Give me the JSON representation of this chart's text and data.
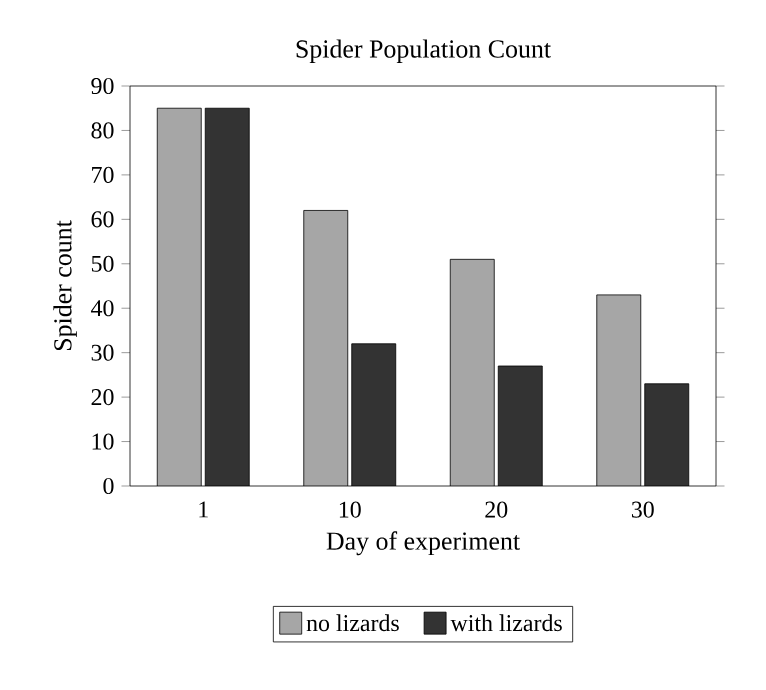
{
  "chart_data": {
    "type": "bar",
    "title": "Spider Population Count",
    "xlabel": "Day of experiment",
    "ylabel": "Spider count",
    "categories": [
      "1",
      "10",
      "20",
      "30"
    ],
    "series": [
      {
        "name": "no lizards",
        "color": "#a6a6a6",
        "values": [
          85,
          62,
          51,
          43
        ]
      },
      {
        "name": "with lizards",
        "color": "#333333",
        "values": [
          85,
          32,
          27,
          23
        ]
      }
    ],
    "ylim": [
      0,
      90
    ],
    "yticks": [
      0,
      10,
      20,
      30,
      40,
      50,
      60,
      70,
      80,
      90
    ],
    "grid": false,
    "legend": "bottom"
  }
}
